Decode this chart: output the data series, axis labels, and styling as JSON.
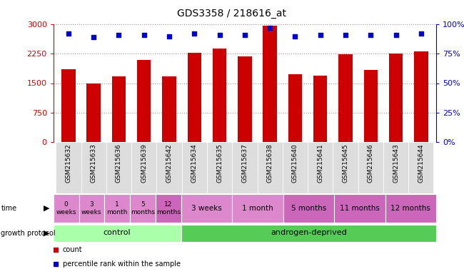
{
  "title": "GDS3358 / 218616_at",
  "samples": [
    "GSM215632",
    "GSM215633",
    "GSM215636",
    "GSM215639",
    "GSM215642",
    "GSM215634",
    "GSM215635",
    "GSM215637",
    "GSM215638",
    "GSM215640",
    "GSM215641",
    "GSM215645",
    "GSM215646",
    "GSM215643",
    "GSM215644"
  ],
  "counts": [
    1850,
    1500,
    1680,
    2100,
    1680,
    2280,
    2380,
    2180,
    2960,
    1730,
    1700,
    2230,
    1830,
    2260,
    2310
  ],
  "percentiles": [
    92,
    89,
    91,
    91,
    90,
    92,
    91,
    91,
    97,
    90,
    91,
    91,
    91,
    91,
    92
  ],
  "bar_color": "#cc0000",
  "dot_color": "#0000cc",
  "ylim_left": [
    0,
    3000
  ],
  "ylim_right": [
    0,
    100
  ],
  "yticks_left": [
    0,
    750,
    1500,
    2250,
    3000
  ],
  "yticks_right": [
    0,
    25,
    50,
    75,
    100
  ],
  "left_axis_color": "#cc0000",
  "right_axis_color": "#0000cc",
  "grid_color": "#999999",
  "bg_color": "#ffffff",
  "xticklabel_bg": "#dddddd",
  "protocol_groups": [
    {
      "label": "control",
      "n_samples": 5,
      "color": "#aaffaa"
    },
    {
      "label": "androgen-deprived",
      "n_samples": 10,
      "color": "#55cc55"
    }
  ],
  "time_cells": [
    {
      "label": "0\nweeks",
      "n_samples": 1,
      "color": "#dd88cc"
    },
    {
      "label": "3\nweeks",
      "n_samples": 1,
      "color": "#dd88cc"
    },
    {
      "label": "1\nmonth",
      "n_samples": 1,
      "color": "#dd88cc"
    },
    {
      "label": "5\nmonths",
      "n_samples": 1,
      "color": "#dd88cc"
    },
    {
      "label": "12\nmonths",
      "n_samples": 1,
      "color": "#cc66bb"
    },
    {
      "label": "3 weeks",
      "n_samples": 2,
      "color": "#dd88cc"
    },
    {
      "label": "1 month",
      "n_samples": 2,
      "color": "#dd88cc"
    },
    {
      "label": "5 months",
      "n_samples": 2,
      "color": "#cc66bb"
    },
    {
      "label": "11 months",
      "n_samples": 2,
      "color": "#cc66bb"
    },
    {
      "label": "12 months",
      "n_samples": 2,
      "color": "#cc66bb"
    }
  ],
  "legend_items": [
    {
      "label": "count",
      "color": "#cc0000"
    },
    {
      "label": "percentile rank within the sample",
      "color": "#0000cc"
    }
  ]
}
